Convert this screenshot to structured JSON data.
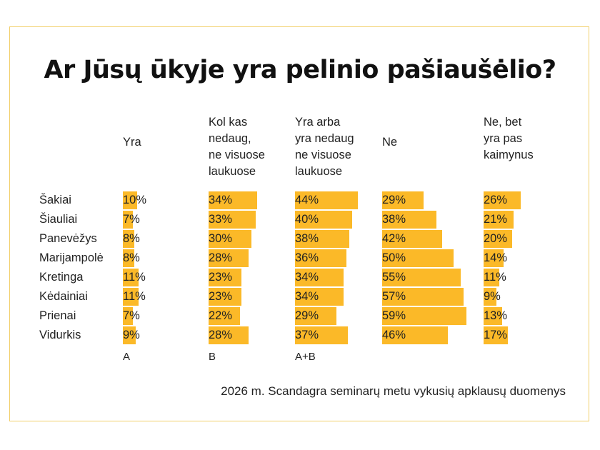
{
  "chart_data": {
    "type": "bar",
    "title": "Ar Jūsų ūkyje yra pelinio pašiaušėlio?",
    "categories": [
      "Šakiai",
      "Šiauliai",
      "Panevėžys",
      "Marijampolė",
      "Kretinga",
      "Kėdainiai",
      "Prienai",
      "Vidurkis"
    ],
    "series": [
      {
        "name": "Yra",
        "values": [
          10,
          7,
          8,
          8,
          11,
          11,
          7,
          9
        ],
        "note": "A"
      },
      {
        "name": "Kol kas\nnedaug,\nne visuose\nlaukuose",
        "values": [
          34,
          33,
          30,
          28,
          23,
          23,
          22,
          28
        ],
        "note": "B"
      },
      {
        "name": "Yra arba\nyra nedaug\nne visuose\nlaukuose",
        "values": [
          44,
          40,
          38,
          36,
          34,
          34,
          29,
          37
        ],
        "note": "A+B"
      },
      {
        "name": "Ne",
        "values": [
          29,
          38,
          42,
          50,
          55,
          57,
          59,
          46
        ],
        "note": ""
      },
      {
        "name": "Ne, bet\nyra pas\nkaimynus",
        "values": [
          26,
          21,
          20,
          14,
          11,
          9,
          13,
          17
        ],
        "note": ""
      }
    ],
    "unit": "%",
    "bar_color": "#fbb928",
    "orientation": "horizontal"
  },
  "source": "2026 m. Scandagra seminarų metu vykusių apklausų duomenys"
}
